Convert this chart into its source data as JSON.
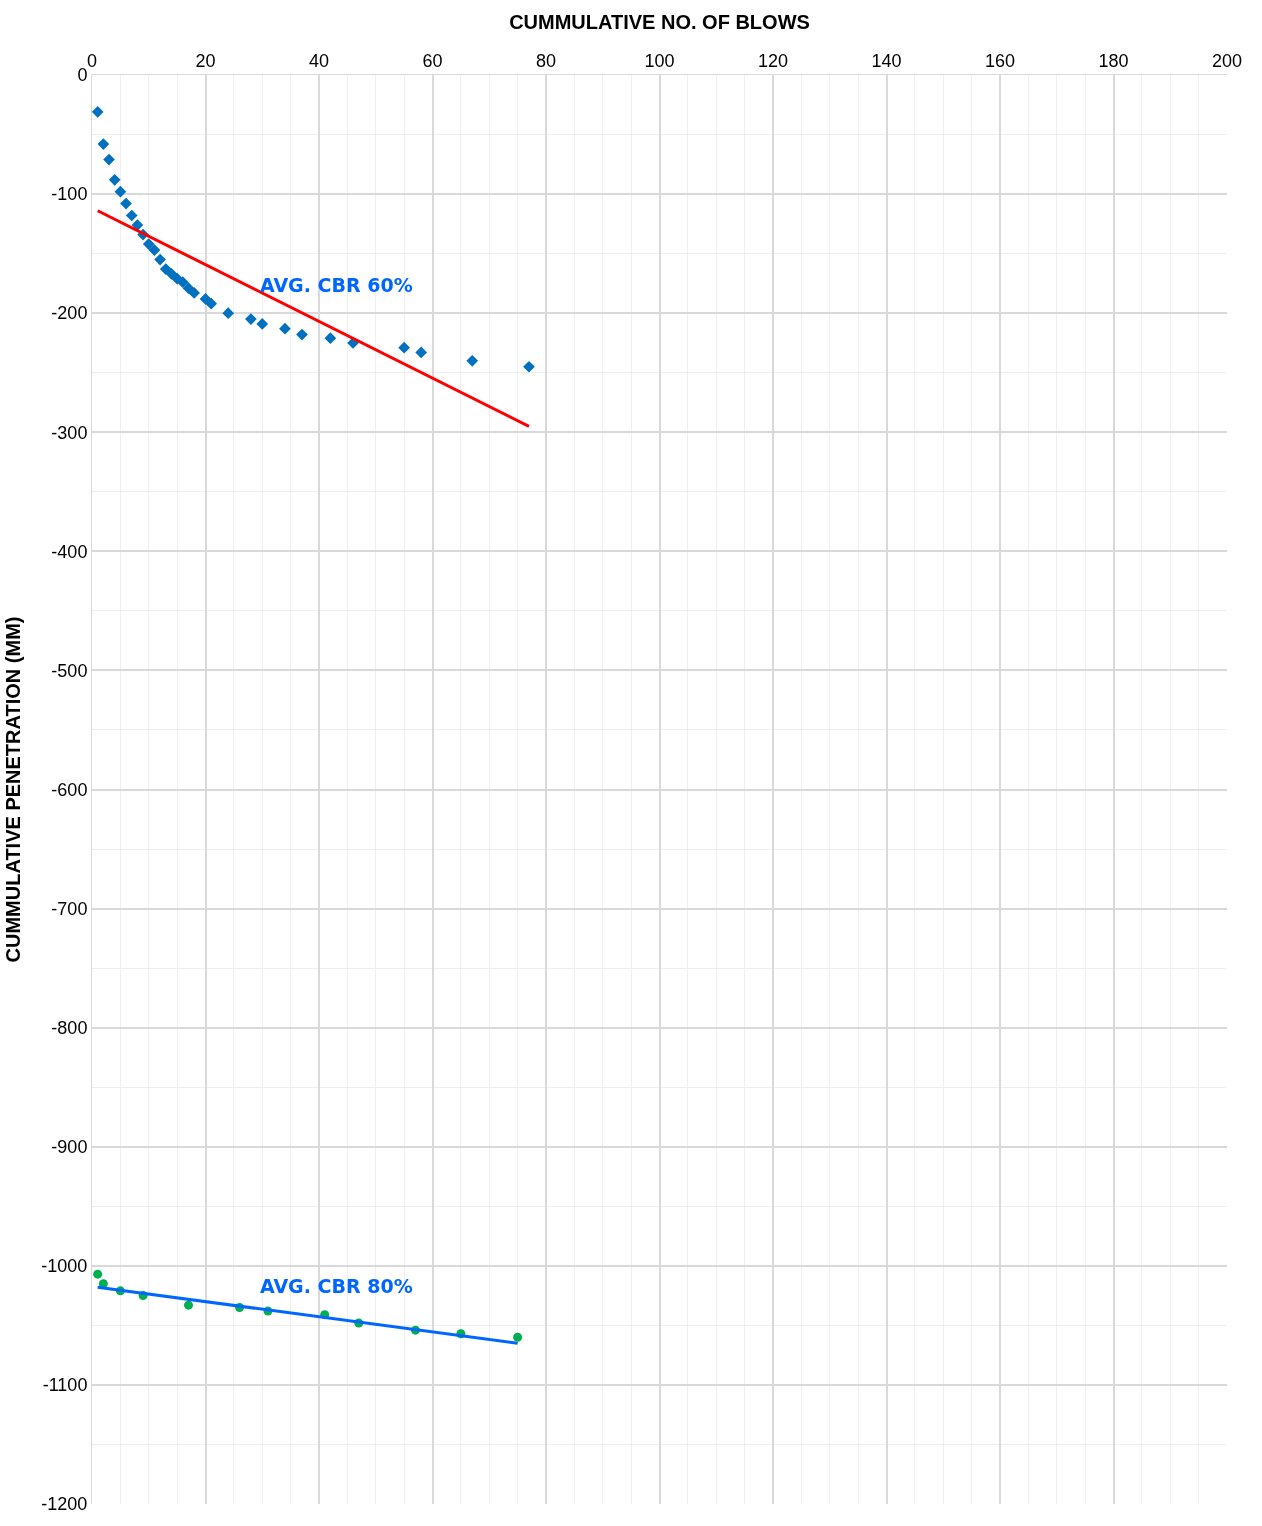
{
  "chart_data": {
    "type": "scatter",
    "xlabel": "CUMMULATIVE NO. OF BLOWS",
    "ylabel": "CUMMULATIVE PENETRATION (MM)",
    "xlim": [
      0,
      200
    ],
    "xticks": [
      0,
      20,
      40,
      60,
      80,
      100,
      120,
      140,
      160,
      180,
      200
    ],
    "ylim": [
      -1200,
      0
    ],
    "yticks": [
      0,
      -100,
      -200,
      -300,
      -400,
      -500,
      -600,
      -700,
      -800,
      -900,
      -1000,
      -1100,
      -1200
    ],
    "grid": true,
    "series": [
      {
        "marker": "diamond",
        "color": "#0070c0",
        "x": [
          1,
          2,
          3,
          4,
          5,
          6,
          7,
          8,
          9,
          10,
          11,
          12,
          13,
          14,
          15,
          16,
          17,
          18,
          20,
          21,
          24,
          28,
          30,
          34,
          37,
          42,
          46,
          55,
          58,
          67,
          77
        ],
        "values": [
          -31,
          -58,
          -71,
          -88,
          -98,
          -108,
          -118,
          -126,
          -134,
          -142,
          -147,
          -155,
          -163,
          -167,
          -171,
          -174,
          -179,
          -183,
          -188,
          -192,
          -200,
          -205,
          -209,
          -213,
          -218,
          -221,
          -225,
          -229,
          -233,
          -240,
          -245
        ]
      },
      {
        "type": "line",
        "color": "#ff0000",
        "x": [
          1,
          77
        ],
        "values": [
          -114,
          -295
        ]
      },
      {
        "marker": "circle",
        "color": "#00b050",
        "x": [
          1,
          2,
          5,
          9,
          17,
          26,
          31,
          41,
          47,
          57,
          65,
          75
        ],
        "values": [
          -1007,
          -1015,
          -1021,
          -1025,
          -1033,
          -1035,
          -1038,
          -1041,
          -1048,
          -1054,
          -1057,
          -1060
        ]
      },
      {
        "type": "line",
        "color": "#0066ff",
        "x": [
          1,
          75
        ],
        "values": [
          -1018,
          -1065
        ]
      }
    ],
    "annotations": [
      {
        "text": "AVG. CBR 60%",
        "x": 44,
        "y": -216
      },
      {
        "text": "AVG. CBR 80%",
        "x": 44,
        "y": -1045
      }
    ]
  }
}
